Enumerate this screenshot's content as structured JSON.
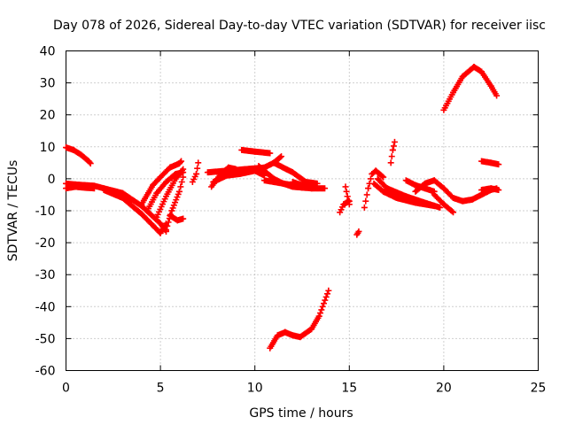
{
  "chart_data": {
    "type": "scatter",
    "title": "Day 078 of 2026, Sidereal Day-to-day VTEC variation (SDTVAR) for receiver iisc",
    "xlabel": "GPS time / hours",
    "ylabel": "SDTVAR / TECUs",
    "xlim": [
      0,
      25
    ],
    "ylim": [
      -60,
      40
    ],
    "x_ticks": [
      0,
      5,
      10,
      15,
      20,
      25
    ],
    "y_ticks": [
      -60,
      -50,
      -40,
      -30,
      -20,
      -10,
      0,
      10,
      20,
      30,
      40
    ],
    "grid": true,
    "marker": "+",
    "series": [
      {
        "name": "iisc",
        "color": "#ff0000",
        "tracks": [
          [
            [
              0.0,
              9.8
            ],
            [
              0.4,
              9.0
            ],
            [
              0.8,
              7.5
            ],
            [
              1.2,
              5.5
            ],
            [
              1.3,
              4.8
            ]
          ],
          [
            [
              0.0,
              -1.5
            ],
            [
              0.5,
              -1.8
            ],
            [
              1.0,
              -2.0
            ],
            [
              1.5,
              -2.2
            ],
            [
              2.0,
              -3.0
            ],
            [
              3.0,
              -4.5
            ],
            [
              4.0,
              -8.5
            ],
            [
              5.0,
              -14.0
            ],
            [
              5.3,
              -16.5
            ]
          ],
          [
            [
              0.0,
              -3.0
            ],
            [
              0.5,
              -2.5
            ],
            [
              1.0,
              -2.8
            ],
            [
              1.5,
              -3.0
            ]
          ],
          [
            [
              2.0,
              -3.5
            ],
            [
              3.0,
              -6.0
            ],
            [
              4.0,
              -11.0
            ],
            [
              5.0,
              -17.0
            ],
            [
              5.3,
              -14.0
            ]
          ],
          [
            [
              4.0,
              -8.0
            ],
            [
              4.6,
              -2.0
            ],
            [
              5.0,
              0.5
            ],
            [
              5.5,
              3.5
            ],
            [
              6.0,
              4.8
            ],
            [
              6.1,
              5.5
            ]
          ],
          [
            [
              4.3,
              -10.0
            ],
            [
              4.8,
              -4.5
            ],
            [
              5.3,
              -1.0
            ],
            [
              5.8,
              1.5
            ],
            [
              6.2,
              2.0
            ]
          ],
          [
            [
              4.8,
              -12.0
            ],
            [
              5.3,
              -5.5
            ],
            [
              5.8,
              0.0
            ],
            [
              6.2,
              3.0
            ]
          ],
          [
            [
              5.3,
              -16.0
            ],
            [
              5.6,
              -10.0
            ],
            [
              6.0,
              -4.0
            ],
            [
              6.2,
              0.5
            ]
          ],
          [
            [
              5.5,
              -11.5
            ],
            [
              5.9,
              -13.0
            ],
            [
              6.2,
              -12.5
            ]
          ],
          [
            [
              6.7,
              -1.0
            ],
            [
              6.9,
              1.5
            ],
            [
              7.0,
              5.0
            ]
          ],
          [
            [
              7.7,
              -2.5
            ],
            [
              8.2,
              1.5
            ],
            [
              8.6,
              3.5
            ],
            [
              9.0,
              3.0
            ]
          ],
          [
            [
              7.5,
              2.0
            ],
            [
              8.5,
              2.5
            ],
            [
              9.5,
              3.0
            ],
            [
              10.5,
              3.5
            ],
            [
              11.0,
              5.0
            ],
            [
              11.4,
              7.0
            ]
          ],
          [
            [
              7.8,
              -1.0
            ],
            [
              8.5,
              1.0
            ],
            [
              9.2,
              1.5
            ],
            [
              10.0,
              2.5
            ],
            [
              10.5,
              1.0
            ]
          ],
          [
            [
              9.3,
              9.0
            ],
            [
              10.0,
              8.5
            ],
            [
              10.8,
              8.0
            ]
          ],
          [
            [
              10.2,
              4.0
            ],
            [
              11.0,
              0.0
            ],
            [
              11.5,
              -1.5
            ],
            [
              12.0,
              -2.5
            ],
            [
              13.0,
              -3.0
            ],
            [
              13.7,
              -3.0
            ]
          ],
          [
            [
              10.5,
              -0.5
            ],
            [
              11.0,
              -1.0
            ],
            [
              12.0,
              -2.0
            ],
            [
              12.5,
              -2.8
            ]
          ],
          [
            [
              11.0,
              5.0
            ],
            [
              12.0,
              2.0
            ],
            [
              12.7,
              -1.0
            ],
            [
              13.3,
              -1.5
            ]
          ],
          [
            [
              12.0,
              -1.0
            ],
            [
              12.5,
              -2.0
            ],
            [
              13.0,
              -2.5
            ]
          ],
          [
            [
              10.8,
              -53.0
            ],
            [
              11.2,
              -49.0
            ],
            [
              11.6,
              -48.0
            ],
            [
              12.0,
              -49.0
            ],
            [
              12.4,
              -49.5
            ],
            [
              13.0,
              -47.0
            ],
            [
              13.4,
              -43.0
            ],
            [
              13.9,
              -35.0
            ]
          ],
          [
            [
              14.8,
              -2.5
            ],
            [
              14.9,
              -5.5
            ],
            [
              15.0,
              -8.0
            ]
          ],
          [
            [
              14.5,
              -10.5
            ],
            [
              14.7,
              -8.0
            ],
            [
              15.0,
              -7.0
            ]
          ],
          [
            [
              15.4,
              -17.5
            ],
            [
              15.5,
              -16.5
            ]
          ],
          [
            [
              15.8,
              -9.0
            ],
            [
              16.0,
              -3.0
            ],
            [
              16.2,
              1.5
            ],
            [
              16.4,
              2.5
            ],
            [
              16.8,
              0.5
            ]
          ],
          [
            [
              16.3,
              -1.5
            ],
            [
              16.8,
              -4.0
            ],
            [
              17.5,
              -6.0
            ],
            [
              18.5,
              -7.5
            ],
            [
              19.5,
              -8.5
            ]
          ],
          [
            [
              16.5,
              0.0
            ],
            [
              17.0,
              -3.0
            ],
            [
              18.0,
              -5.5
            ],
            [
              19.0,
              -7.5
            ],
            [
              19.8,
              -9.0
            ]
          ],
          [
            [
              17.2,
              5.0
            ],
            [
              17.3,
              9.0
            ],
            [
              17.4,
              11.5
            ]
          ],
          [
            [
              18.0,
              -0.5
            ],
            [
              18.5,
              -2.0
            ],
            [
              19.0,
              -3.0
            ],
            [
              19.5,
              -4.0
            ]
          ],
          [
            [
              18.5,
              -4.0
            ],
            [
              19.0,
              -1.5
            ],
            [
              19.5,
              -0.5
            ],
            [
              20.0,
              -3.0
            ],
            [
              20.5,
              -6.0
            ],
            [
              21.0,
              -7.0
            ],
            [
              21.5,
              -6.5
            ],
            [
              22.0,
              -5.0
            ],
            [
              22.5,
              -3.5
            ],
            [
              22.8,
              -3.0
            ]
          ],
          [
            [
              19.5,
              -5.0
            ],
            [
              20.0,
              -8.0
            ],
            [
              20.5,
              -10.5
            ]
          ],
          [
            [
              20.0,
              21.5
            ],
            [
              20.5,
              27.0
            ],
            [
              21.0,
              32.0
            ],
            [
              21.6,
              35.0
            ],
            [
              22.0,
              33.5
            ],
            [
              22.5,
              29.0
            ],
            [
              22.8,
              26.0
            ]
          ],
          [
            [
              22.0,
              5.5
            ],
            [
              22.5,
              5.0
            ],
            [
              22.9,
              4.5
            ]
          ],
          [
            [
              22.0,
              -3.5
            ],
            [
              22.5,
              -3.0
            ],
            [
              22.9,
              -3.5
            ]
          ]
        ]
      }
    ]
  }
}
